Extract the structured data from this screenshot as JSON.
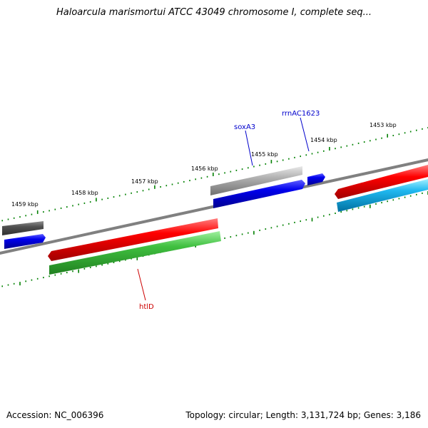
{
  "title": "Haloarcula marismortui ATCC 43049 chromosome I, complete seq...",
  "footer": {
    "accession": "Accession: NC_006396",
    "summary": "Topology: circular; Length: 3,131,724 bp; Genes: 3,186"
  },
  "ruler": {
    "labels": [
      "1453 kbp",
      "1454 kbp",
      "1455 kbp",
      "1456 kbp",
      "1457 kbp",
      "1458 kbp",
      "1459 kbp"
    ]
  },
  "gene_labels": [
    {
      "name": "soxA3",
      "color": "#0000cc"
    },
    {
      "name": "rrnAC1623",
      "color": "#0000cc"
    },
    {
      "name": "htlD",
      "color": "#cc0000"
    }
  ],
  "colors": {
    "backbone": "#808080",
    "ticks": "#008000",
    "red": "#e00000",
    "blue": "#0000e0",
    "green": "#40c040",
    "gray": "#a0a0a0",
    "darkgray": "#555555",
    "cyan": "#20b0e0"
  }
}
